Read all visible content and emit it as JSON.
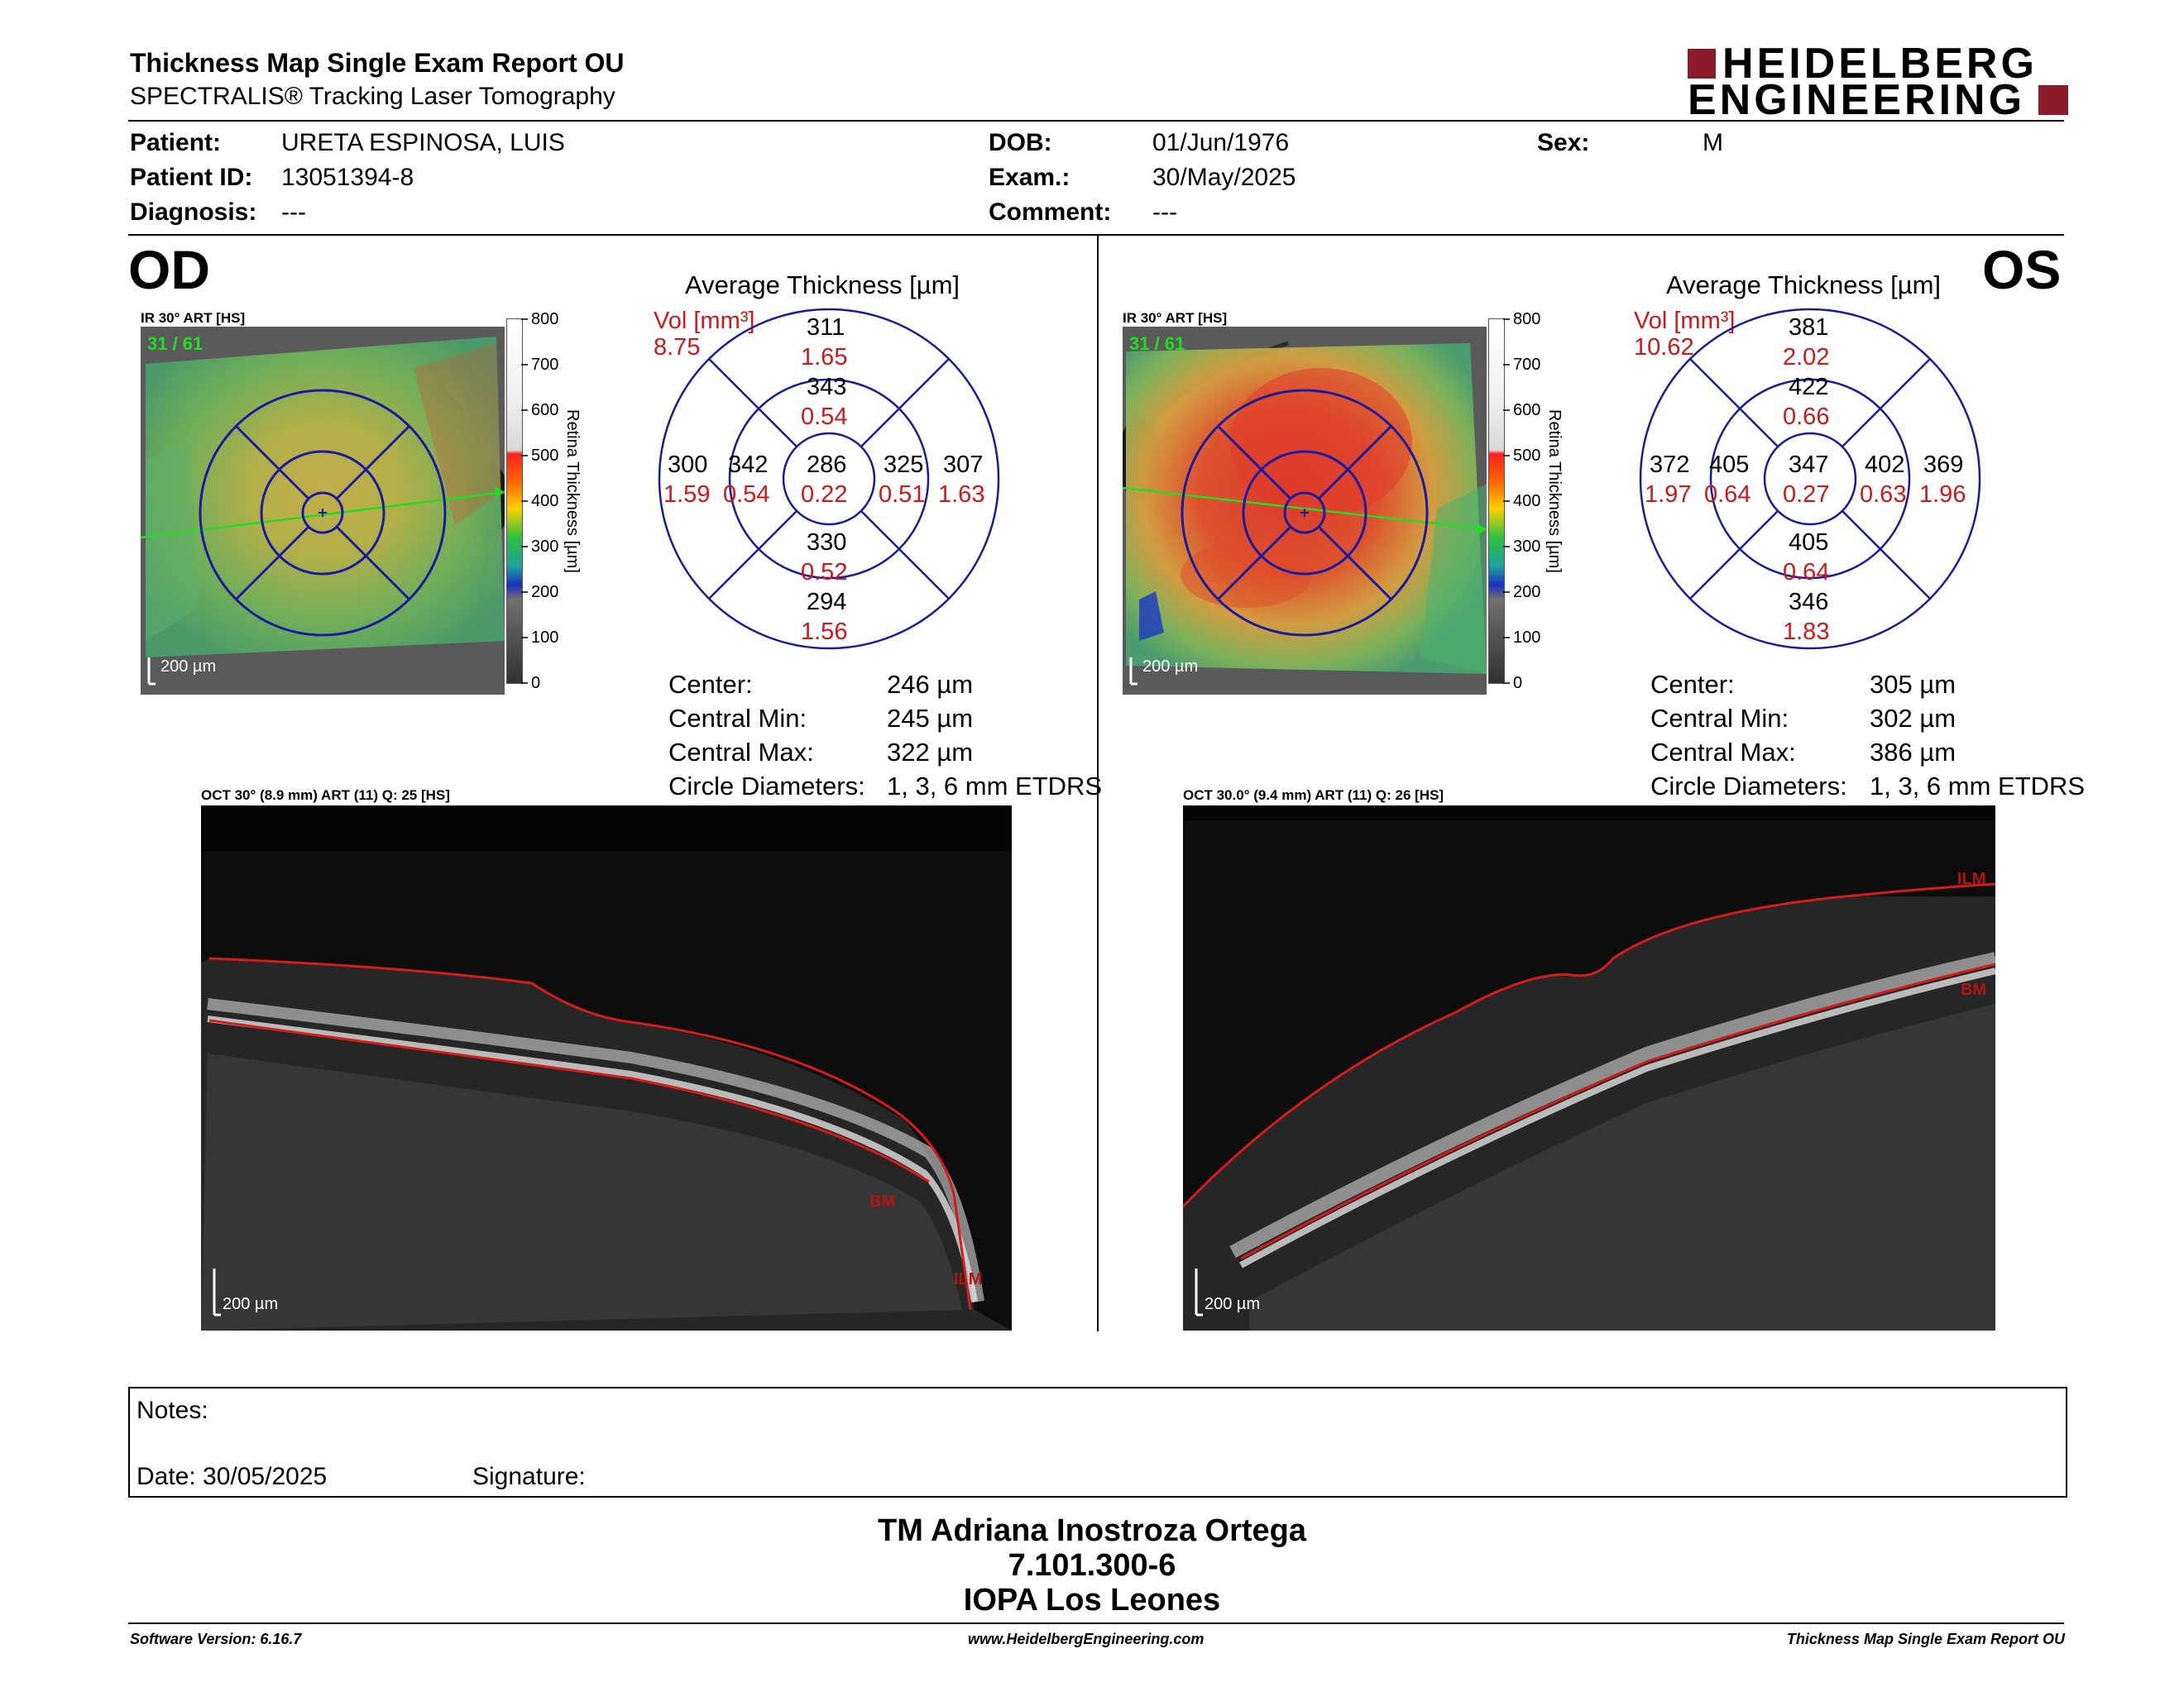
{
  "header": {
    "title": "Thickness Map Single Exam Report OU",
    "subtitle": "SPECTRALIS® Tracking Laser Tomography",
    "logo_line1": "HEIDELBERG",
    "logo_line2": "ENGINEERING",
    "brand_color": "#8b1a2b"
  },
  "patient": {
    "patient_label": "Patient:",
    "patient_value": "URETA ESPINOSA, LUIS",
    "id_label": "Patient ID:",
    "id_value": "13051394-8",
    "diagnosis_label": "Diagnosis:",
    "diagnosis_value": "---",
    "dob_label": "DOB:",
    "dob_value": "01/Jun/1976",
    "exam_label": "Exam.:",
    "exam_value": "30/May/2025",
    "comment_label": "Comment:",
    "comment_value": "---",
    "sex_label": "Sex:",
    "sex_value": "M"
  },
  "colorbar": {
    "ticks": [
      "800",
      "700",
      "600",
      "500",
      "400",
      "300",
      "200",
      "100",
      "0"
    ],
    "label": "Retina Thickness [µm]"
  },
  "od": {
    "eye": "OD",
    "ir_label": "IR 30° ART [HS]",
    "frames": "31 / 61",
    "scale": "200 µm",
    "avg_title": "Average Thickness [µm]",
    "vol_label": "Vol [mm³]",
    "vol_value": "8.75",
    "grid": {
      "outer_sup": "311",
      "outer_sup_vol": "1.65",
      "inner_sup": "343",
      "inner_sup_vol": "0.54",
      "outer_temp": "300",
      "outer_temp_vol": "1.59",
      "inner_temp": "342",
      "inner_temp_vol": "0.54",
      "center": "286",
      "center_vol": "0.22",
      "inner_nas": "325",
      "inner_nas_vol": "0.51",
      "outer_nas": "307",
      "outer_nas_vol": "1.63",
      "inner_inf": "330",
      "inner_inf_vol": "0.52",
      "outer_inf": "294",
      "outer_inf_vol": "1.56"
    },
    "stats": [
      {
        "label": "Center:",
        "value": "246 µm"
      },
      {
        "label": "Central Min:",
        "value": "245 µm"
      },
      {
        "label": "Central Max:",
        "value": "322 µm"
      },
      {
        "label": "Circle Diameters:",
        "value": "1, 3, 6 mm ETDRS"
      }
    ],
    "oct_label": "OCT 30° (8.9 mm) ART (11) Q: 25 [HS]",
    "oct_scale": "200 µm",
    "bm_label": "BM",
    "ilm_label": "ILM"
  },
  "os": {
    "eye": "OS",
    "ir_label": "IR 30° ART [HS]",
    "frames": "31 / 61",
    "scale": "200 µm",
    "avg_title": "Average Thickness [µm]",
    "vol_label": "Vol [mm³]",
    "vol_value": "10.62",
    "grid": {
      "outer_sup": "381",
      "outer_sup_vol": "2.02",
      "inner_sup": "422",
      "inner_sup_vol": "0.66",
      "outer_temp": "372",
      "outer_temp_vol": "1.97",
      "inner_temp": "405",
      "inner_temp_vol": "0.64",
      "center": "347",
      "center_vol": "0.27",
      "inner_nas": "402",
      "inner_nas_vol": "0.63",
      "outer_nas": "369",
      "outer_nas_vol": "1.96",
      "inner_inf": "405",
      "inner_inf_vol": "0.64",
      "outer_inf": "346",
      "outer_inf_vol": "1.83"
    },
    "stats": [
      {
        "label": "Center:",
        "value": "305 µm"
      },
      {
        "label": "Central Min:",
        "value": "302 µm"
      },
      {
        "label": "Central Max:",
        "value": "386 µm"
      },
      {
        "label": "Circle Diameters:",
        "value": "1, 3, 6 mm ETDRS"
      }
    ],
    "oct_label": "OCT 30.0° (9.4 mm) ART (11) Q: 26 [HS]",
    "oct_scale": "200 µm",
    "bm_label": "BM",
    "ilm_label": "ILM"
  },
  "notes": {
    "notes_label": "Notes:",
    "date_label": "Date: 30/05/2025",
    "signature_label": "Signature:"
  },
  "signature": {
    "name": "TM Adriana Inostroza Ortega",
    "id": "7.101.300-6",
    "place": "IOPA Los Leones"
  },
  "footer": {
    "software": "Software Version: 6.16.7",
    "website": "www.HeidelbergEngineering.com",
    "report": "Thickness Map Single Exam Report OU"
  }
}
